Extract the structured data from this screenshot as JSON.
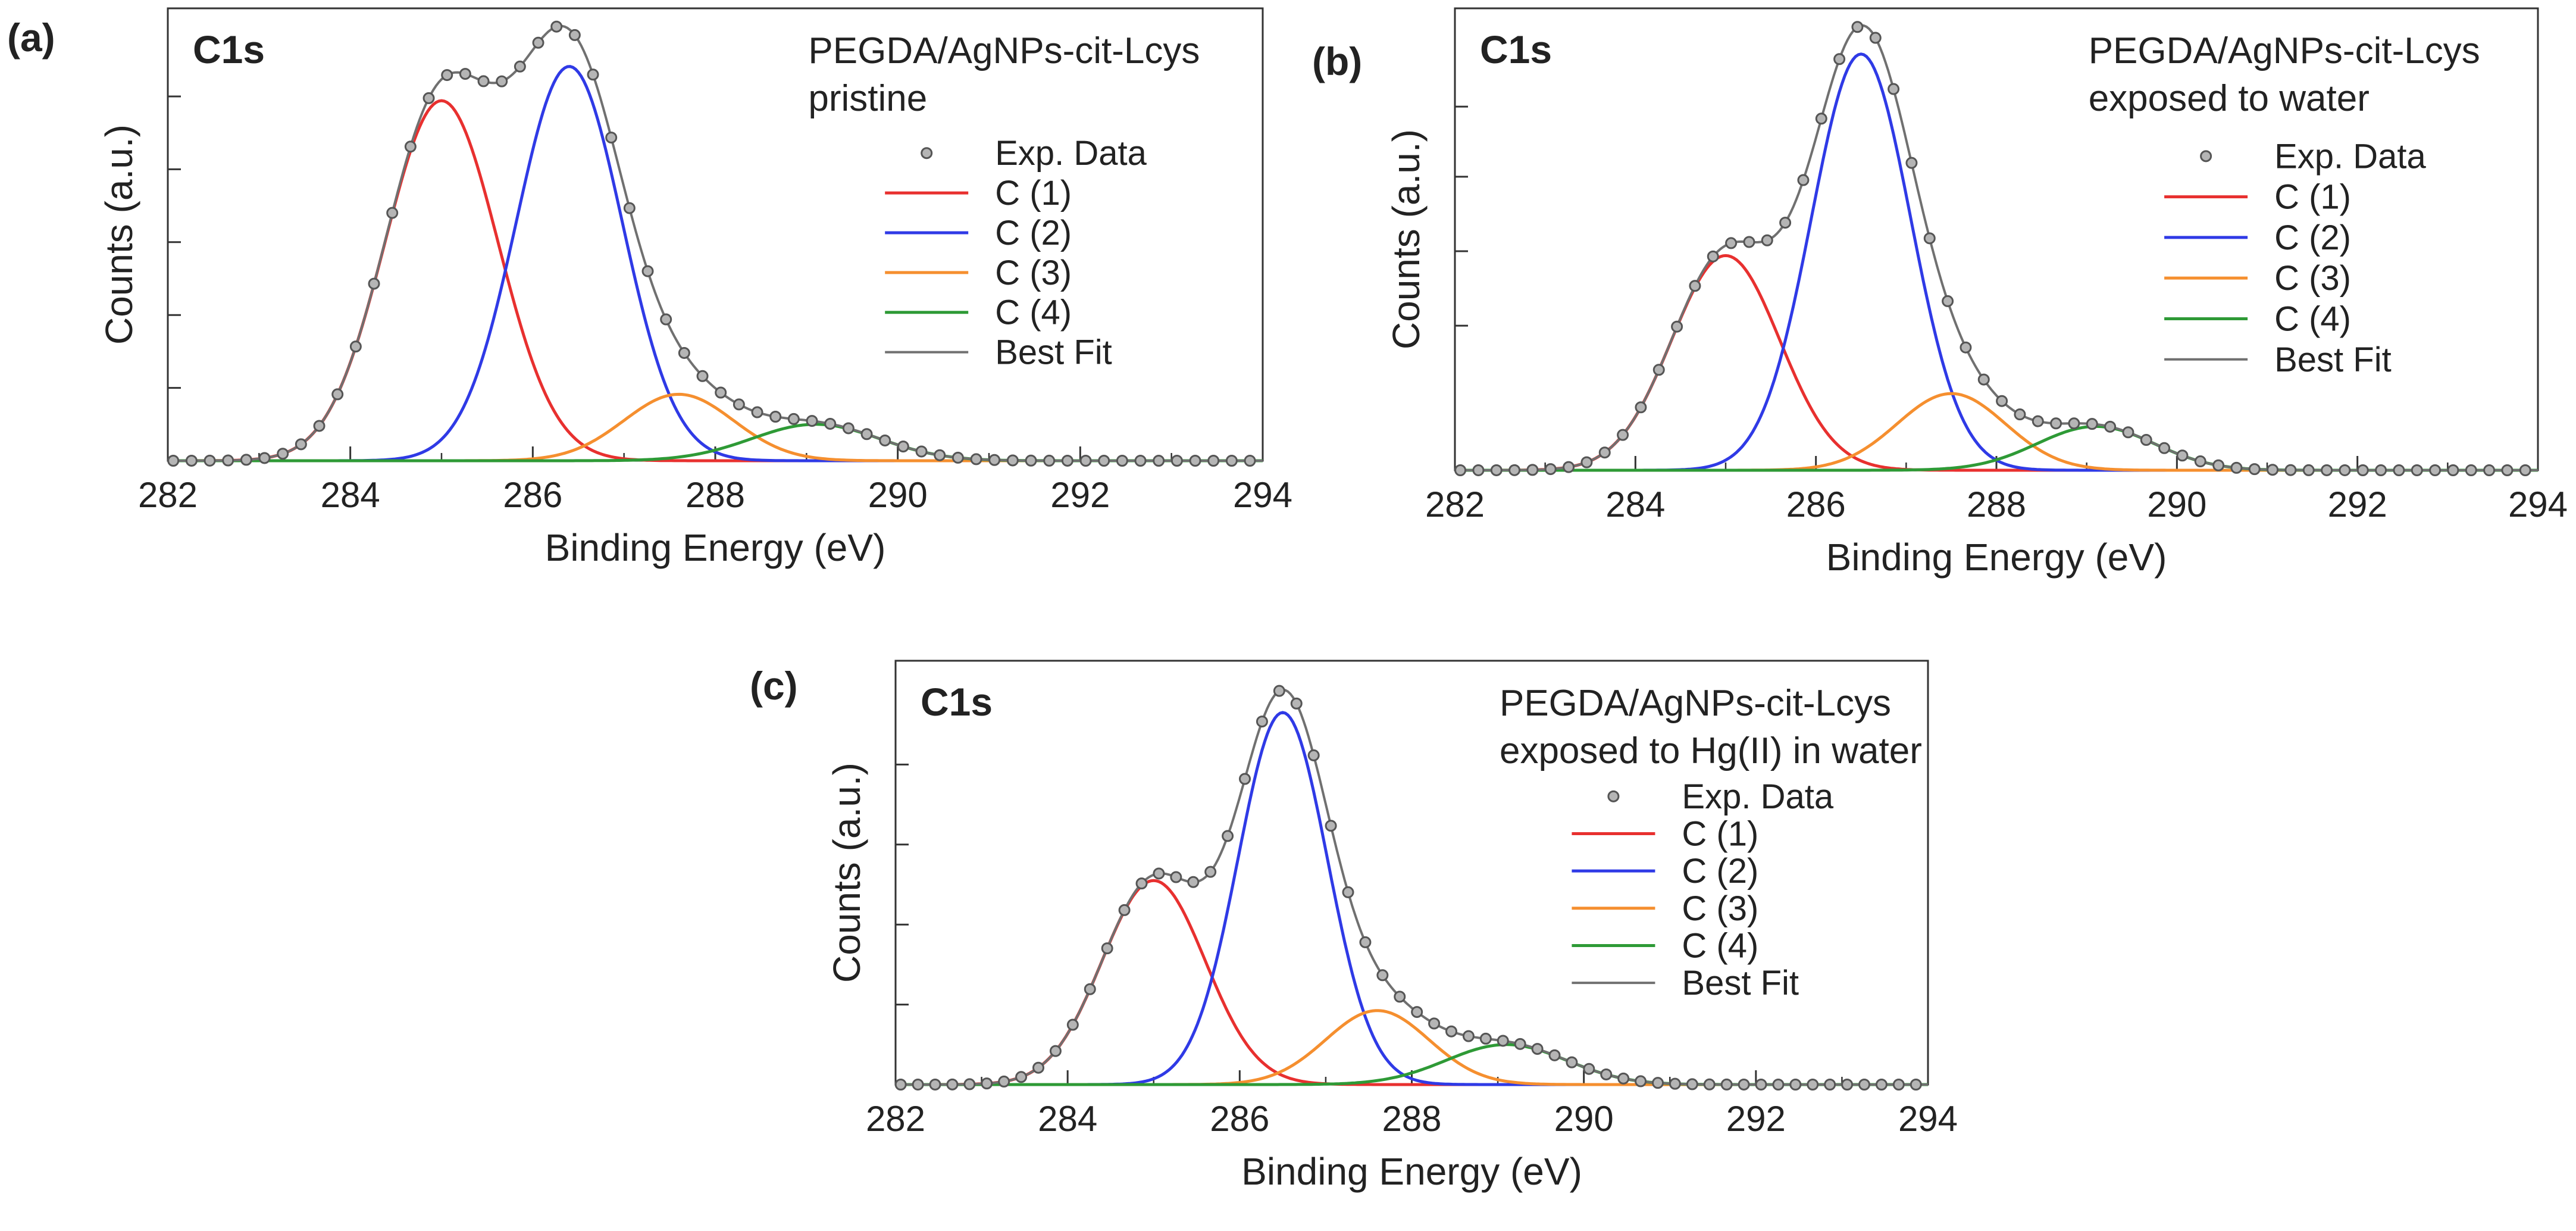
{
  "chart_data": [
    {
      "panel_label": "(a)",
      "type": "line",
      "title": "C1s",
      "annotation": [
        "PEGDA/AgNPs-cit-Lcys",
        "pristine"
      ],
      "xlabel": "Binding Energy (eV)",
      "ylabel": "Counts (a.u.)",
      "xlim": [
        282,
        294
      ],
      "ylim": [
        0,
        1.0
      ],
      "x_ticks": [
        "282",
        "284",
        "286",
        "288",
        "290",
        "292",
        "294"
      ],
      "y_tick_values": [
        0.17,
        0.34,
        0.51,
        0.68,
        0.85
      ],
      "legend": [
        "Exp. Data",
        "C (1)",
        "C (2)",
        "C (3)",
        "C (4)",
        "Best Fit"
      ],
      "components": [
        {
          "name": "C (1)",
          "center": 285.0,
          "amplitude": 0.84,
          "sigma": 0.62
        },
        {
          "name": "C (2)",
          "center": 286.4,
          "amplitude": 0.92,
          "sigma": 0.58
        },
        {
          "name": "C (3)",
          "center": 287.6,
          "amplitude": 0.155,
          "sigma": 0.6
        },
        {
          "name": "C (4)",
          "center": 289.1,
          "amplitude": 0.085,
          "sigma": 0.7
        }
      ]
    },
    {
      "panel_label": "(b)",
      "type": "line",
      "title": "C1s",
      "annotation": [
        "PEGDA/AgNPs-cit-Lcys",
        "exposed to water"
      ],
      "xlabel": "Binding Energy (eV)",
      "ylabel": "Counts (a.u.)",
      "xlim": [
        282,
        294
      ],
      "ylim": [
        0,
        1.0
      ],
      "x_ticks": [
        "282",
        "284",
        "286",
        "288",
        "290",
        "292",
        "294"
      ],
      "y_tick_values": [
        0.33,
        0.5,
        0.67,
        0.83
      ],
      "legend": [
        "Exp. Data",
        "C (1)",
        "C (2)",
        "C (3)",
        "C (4)",
        "Best Fit"
      ],
      "components": [
        {
          "name": "C (1)",
          "center": 285.0,
          "amplitude": 0.49,
          "sigma": 0.6
        },
        {
          "name": "C (2)",
          "center": 286.5,
          "amplitude": 0.95,
          "sigma": 0.55
        },
        {
          "name": "C (3)",
          "center": 287.5,
          "amplitude": 0.175,
          "sigma": 0.6
        },
        {
          "name": "C (4)",
          "center": 289.1,
          "amplitude": 0.1,
          "sigma": 0.65
        }
      ]
    },
    {
      "panel_label": "(c)",
      "type": "line",
      "title": "C1s",
      "annotation": [
        "PEGDA/AgNPs-cit-Lcys",
        "exposed to Hg(II) in water"
      ],
      "xlabel": "Binding Energy (eV)",
      "ylabel": "Counts (a.u.)",
      "xlim": [
        282,
        294
      ],
      "ylim": [
        0,
        1.0
      ],
      "x_ticks": [
        "282",
        "284",
        "286",
        "288",
        "290",
        "292",
        "294"
      ],
      "y_tick_values": [
        0.2,
        0.4,
        0.6,
        0.8
      ],
      "legend": [
        "Exp. Data",
        "C (1)",
        "C (2)",
        "C (3)",
        "C (4)",
        "Best Fit"
      ],
      "components": [
        {
          "name": "C (1)",
          "center": 285.0,
          "amplitude": 0.51,
          "sigma": 0.6
        },
        {
          "name": "C (2)",
          "center": 286.5,
          "amplitude": 0.93,
          "sigma": 0.52
        },
        {
          "name": "C (3)",
          "center": 287.6,
          "amplitude": 0.185,
          "sigma": 0.6
        },
        {
          "name": "C (4)",
          "center": 289.1,
          "amplitude": 0.1,
          "sigma": 0.7
        }
      ]
    }
  ],
  "colors": {
    "exp": "#555555",
    "c1": "#e8302f",
    "c2": "#2f3ae6",
    "c3": "#f58f2f",
    "c4": "#2e9a36",
    "fit": "#707070",
    "axis": "#333333"
  }
}
